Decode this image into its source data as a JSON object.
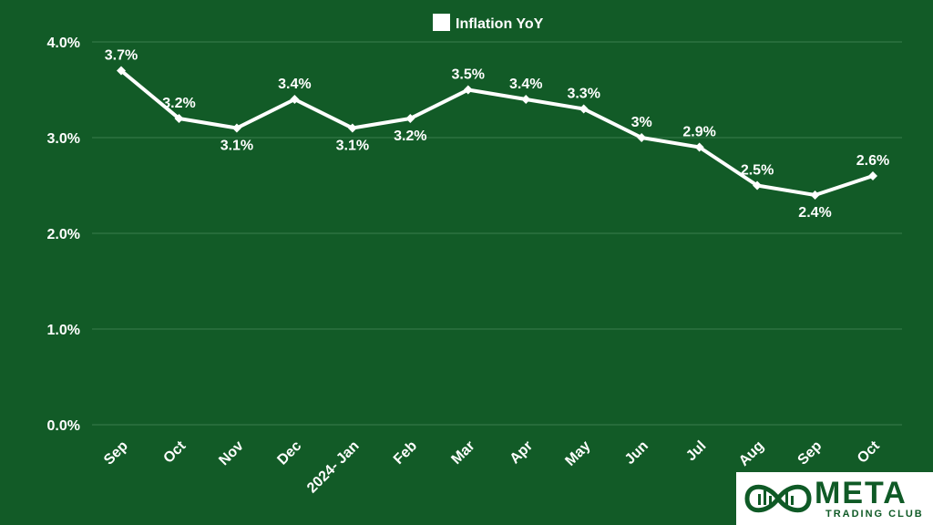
{
  "chart_data": {
    "type": "line",
    "legend": {
      "label": "Inflation YoY",
      "placement": "top-center"
    },
    "categories": [
      "Sep",
      "Oct",
      "Nov",
      "Dec",
      "2024- Jan",
      "Feb",
      "Mar",
      "Apr",
      "May",
      "Jun",
      "Jul",
      "Aug",
      "Sep",
      "Oct"
    ],
    "series": [
      {
        "name": "Inflation YoY",
        "values": [
          3.7,
          3.2,
          3.1,
          3.4,
          3.1,
          3.2,
          3.5,
          3.4,
          3.3,
          3.0,
          2.9,
          2.5,
          2.4,
          2.6
        ],
        "data_labels": [
          "3.7%",
          "3.2%",
          "3.1%",
          "3.4%",
          "3.1%",
          "3.2%",
          "3.5%",
          "3.4%",
          "3.3%",
          "3%",
          "2.9%",
          "2.5%",
          "2.4%",
          "2.6%"
        ]
      }
    ],
    "y_ticks": [
      "0.0%",
      "1.0%",
      "2.0%",
      "3.0%",
      "4.0%"
    ],
    "y_tick_values": [
      0,
      1,
      2,
      3,
      4
    ],
    "ylim": [
      0,
      4
    ],
    "grid": true,
    "colors": {
      "background": "#125b27",
      "line": "#ffffff",
      "grid": "#3a7d4c",
      "text": "#ffffff"
    }
  },
  "logo": {
    "name": "META",
    "tagline": "TRADING CLUB"
  }
}
